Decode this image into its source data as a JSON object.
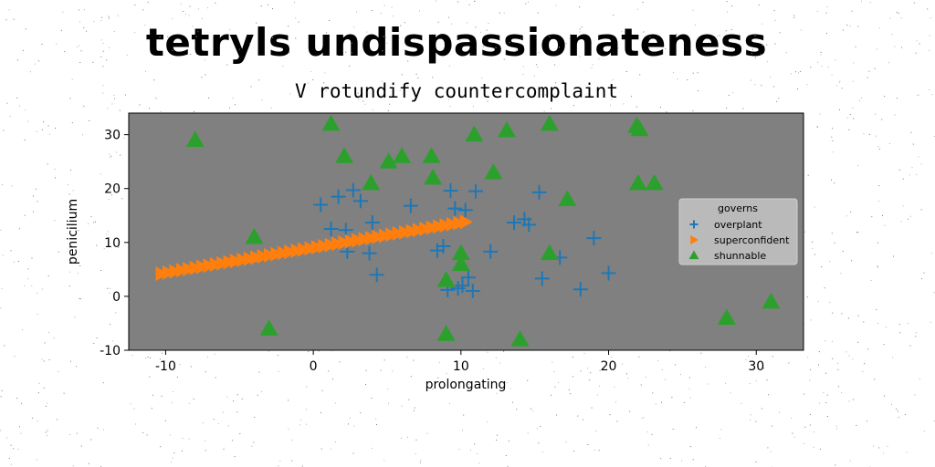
{
  "chart_data": {
    "type": "scatter",
    "title": "tetryls undispassionateness",
    "subtitle": "V rotundify countercomplaint",
    "xlabel": "prolongating",
    "ylabel": "penicilium",
    "xlim": [
      -12.5,
      33.2
    ],
    "ylim": [
      -10,
      34
    ],
    "xticks": [
      -10,
      0,
      10,
      20,
      30
    ],
    "yticks": [
      -10,
      0,
      10,
      20,
      30
    ],
    "grid": false,
    "legend": {
      "title": "governs",
      "placement": "center-right"
    },
    "series": [
      {
        "name": "overplant",
        "marker": "plus",
        "color": "#1f77b4",
        "points": [
          [
            0.5,
            17
          ],
          [
            1.2,
            12.5
          ],
          [
            1.7,
            18.5
          ],
          [
            2.2,
            12.3
          ],
          [
            2.3,
            8.3
          ],
          [
            2.7,
            19.7
          ],
          [
            3.2,
            17.7
          ],
          [
            3.8,
            8
          ],
          [
            4.0,
            13.7
          ],
          [
            4.3,
            4
          ],
          [
            6.6,
            16.8
          ],
          [
            8.4,
            8.5
          ],
          [
            8.8,
            9.3
          ],
          [
            9.1,
            1.2
          ],
          [
            9.3,
            19.6
          ],
          [
            9.6,
            16.3
          ],
          [
            9.8,
            1.5
          ],
          [
            10.1,
            2
          ],
          [
            10.3,
            16
          ],
          [
            10.5,
            3.5
          ],
          [
            10.8,
            1
          ],
          [
            11.0,
            19.5
          ],
          [
            12.0,
            8.3
          ],
          [
            13.6,
            13.7
          ],
          [
            14.3,
            14.3
          ],
          [
            14.6,
            13.3
          ],
          [
            15.3,
            19.3
          ],
          [
            15.5,
            3.3
          ],
          [
            16.7,
            7.2
          ],
          [
            18.1,
            1.3
          ],
          [
            19.0,
            10.8
          ],
          [
            20.0,
            4.3
          ]
        ]
      },
      {
        "name": "superconfident",
        "marker": "triangle-right",
        "color": "#ff7f0e",
        "line": {
          "x_start": -10.3,
          "y_start": 4.2,
          "x_end": 10.3,
          "y_end": 13.8,
          "count": 46
        }
      },
      {
        "name": "shunnable",
        "marker": "triangle-up",
        "color": "#2ca02c",
        "points": [
          [
            -8.0,
            29
          ],
          [
            1.2,
            32
          ],
          [
            2.1,
            26
          ],
          [
            3.9,
            21
          ],
          [
            5.1,
            25
          ],
          [
            6.0,
            26
          ],
          [
            8.0,
            26
          ],
          [
            8.1,
            22
          ],
          [
            10.9,
            30
          ],
          [
            12.2,
            23
          ],
          [
            13.1,
            30.8
          ],
          [
            16.0,
            32
          ],
          [
            17.2,
            18
          ],
          [
            21.9,
            31.6
          ],
          [
            22.1,
            31
          ],
          [
            22.0,
            21
          ],
          [
            23.1,
            21
          ],
          [
            -4.0,
            11
          ],
          [
            -3.0,
            -6
          ],
          [
            9.0,
            -7
          ],
          [
            9.0,
            3
          ],
          [
            10.0,
            8
          ],
          [
            10.0,
            6
          ],
          [
            14.0,
            -8
          ],
          [
            16.0,
            8
          ],
          [
            28.0,
            -4
          ],
          [
            31.0,
            -1
          ]
        ]
      }
    ]
  }
}
